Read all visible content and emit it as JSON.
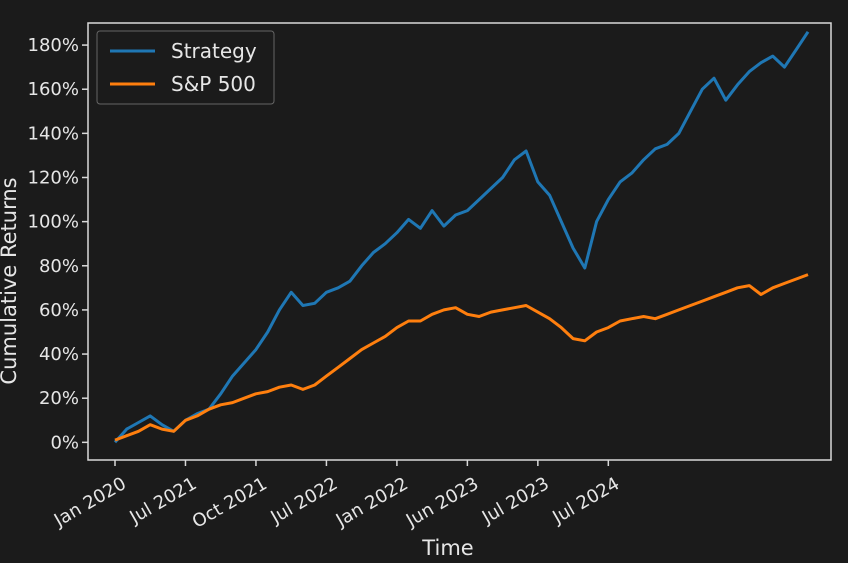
{
  "colors": {
    "background": "#1b1b1b",
    "frame": "#d9d9d9",
    "text": "#e6e6e6",
    "strategy": "#1f77b4",
    "sp500": "#ff7f0e"
  },
  "chart_data": {
    "type": "line",
    "xlabel": "Time",
    "ylabel": "Cumulative Returns",
    "ylim": [
      -8,
      190
    ],
    "y_ticks": [
      {
        "value": 0,
        "label": "0%"
      },
      {
        "value": 20,
        "label": "20%"
      },
      {
        "value": 40,
        "label": "40%"
      },
      {
        "value": 60,
        "label": "60%"
      },
      {
        "value": 80,
        "label": "80%"
      },
      {
        "value": 100,
        "label": "100%"
      },
      {
        "value": 120,
        "label": "120%"
      },
      {
        "value": 140,
        "label": "140%"
      },
      {
        "value": 160,
        "label": "160%"
      },
      {
        "value": 180,
        "label": "180%"
      }
    ],
    "x_ticks": [
      {
        "label": "Jan 2020",
        "index": 0
      },
      {
        "label": "Jul 2021",
        "index": 6
      },
      {
        "label": "Oct 2021",
        "index": 12
      },
      {
        "label": "Jul 2022",
        "index": 18
      },
      {
        "label": "Jan 2022",
        "index": 24
      },
      {
        "label": "Jun 2023",
        "index": 30
      },
      {
        "label": "Jul 2023",
        "index": 36
      },
      {
        "label": "Jul 2024",
        "index": 42
      }
    ],
    "grid": false,
    "legend_position": "top-left",
    "series": [
      {
        "name": "Strategy",
        "color": "#1f77b4",
        "values": [
          0,
          6,
          9,
          12,
          8,
          5,
          10,
          13,
          15,
          22,
          30,
          36,
          42,
          50,
          60,
          68,
          62,
          63,
          68,
          70,
          73,
          80,
          86,
          90,
          95,
          101,
          97,
          105,
          98,
          103,
          105,
          110,
          115,
          120,
          128,
          132,
          118,
          112,
          100,
          88,
          79,
          100,
          110,
          118,
          122,
          128,
          133,
          135,
          140,
          150,
          160,
          165,
          155,
          162,
          168,
          172,
          175,
          170,
          178,
          186
        ]
      },
      {
        "name": "S&P 500",
        "color": "#ff7f0e",
        "values": [
          1,
          3,
          5,
          8,
          6,
          5,
          10,
          12,
          15,
          17,
          18,
          20,
          22,
          23,
          25,
          26,
          24,
          26,
          30,
          34,
          38,
          42,
          45,
          48,
          52,
          55,
          55,
          58,
          60,
          61,
          58,
          57,
          59,
          60,
          61,
          62,
          59,
          56,
          52,
          47,
          46,
          50,
          52,
          55,
          56,
          57,
          56,
          58,
          60,
          62,
          64,
          66,
          68,
          70,
          71,
          67,
          70,
          72,
          74,
          76
        ]
      }
    ]
  }
}
